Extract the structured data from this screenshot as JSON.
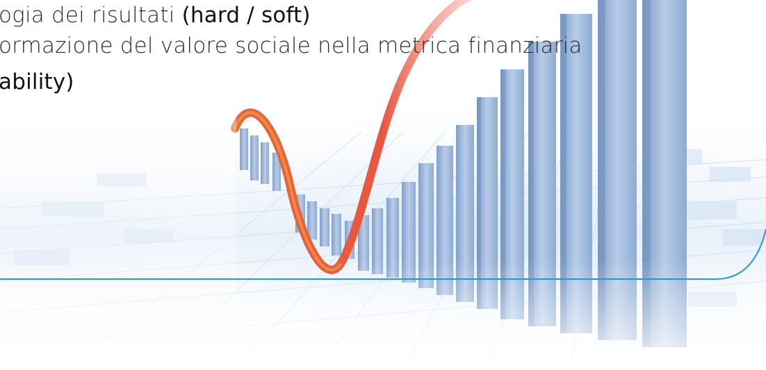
{
  "text": {
    "line1_normal": "ogia dei risultati ",
    "line1_strong": "(hard / soft)",
    "line2": "ormazione del valore sociale nella metrica finanziaria",
    "line3_strong": "ability)"
  },
  "colors": {
    "accent_blue": "#1e9bd7",
    "curve_red": "#e8553f",
    "bar_blue": "#9db6d8",
    "text": "#2b2b2b"
  },
  "illustration": {
    "name": "bar-chart-with-curve-graphic"
  }
}
